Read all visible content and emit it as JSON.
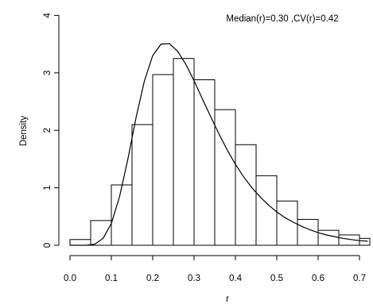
{
  "chart_data": {
    "type": "bar",
    "annotation": "Median(r)=0.30 ,CV(r)=0.42",
    "xlabel": "r",
    "ylabel": "Density",
    "xlim": [
      0.0,
      0.72
    ],
    "ylim": [
      0,
      4
    ],
    "xticks": [
      "0.0",
      "0.1",
      "0.2",
      "0.3",
      "0.4",
      "0.5",
      "0.6",
      "0.7"
    ],
    "yticks": [
      "0",
      "1",
      "2",
      "3",
      "4"
    ],
    "bins": [
      {
        "x0": 0.0,
        "x1": 0.05,
        "density": 0.1
      },
      {
        "x0": 0.05,
        "x1": 0.1,
        "density": 0.43
      },
      {
        "x0": 0.1,
        "x1": 0.15,
        "density": 1.05
      },
      {
        "x0": 0.15,
        "x1": 0.2,
        "density": 2.1
      },
      {
        "x0": 0.2,
        "x1": 0.25,
        "density": 2.97
      },
      {
        "x0": 0.25,
        "x1": 0.3,
        "density": 3.25
      },
      {
        "x0": 0.3,
        "x1": 0.35,
        "density": 2.88
      },
      {
        "x0": 0.35,
        "x1": 0.4,
        "density": 2.36
      },
      {
        "x0": 0.4,
        "x1": 0.45,
        "density": 1.75
      },
      {
        "x0": 0.45,
        "x1": 0.5,
        "density": 1.21
      },
      {
        "x0": 0.5,
        "x1": 0.55,
        "density": 0.77
      },
      {
        "x0": 0.55,
        "x1": 0.6,
        "density": 0.45
      },
      {
        "x0": 0.6,
        "x1": 0.65,
        "density": 0.26
      },
      {
        "x0": 0.65,
        "x1": 0.7,
        "density": 0.18
      },
      {
        "x0": 0.7,
        "x1": 0.75,
        "density": 0.12
      }
    ],
    "curve": {
      "x": [
        0.0,
        0.02,
        0.04,
        0.06,
        0.08,
        0.1,
        0.12,
        0.14,
        0.16,
        0.18,
        0.2,
        0.22,
        0.24,
        0.26,
        0.28,
        0.3,
        0.32,
        0.34,
        0.36,
        0.38,
        0.4,
        0.42,
        0.44,
        0.46,
        0.48,
        0.5,
        0.52,
        0.54,
        0.56,
        0.58,
        0.6,
        0.62,
        0.64,
        0.66,
        0.68,
        0.7,
        0.72
      ],
      "y": [
        0.0,
        0.0,
        0.0,
        0.02,
        0.12,
        0.38,
        0.85,
        1.5,
        2.23,
        2.86,
        3.3,
        3.5,
        3.51,
        3.38,
        3.15,
        2.86,
        2.55,
        2.24,
        1.94,
        1.66,
        1.41,
        1.19,
        1.0,
        0.84,
        0.7,
        0.58,
        0.48,
        0.4,
        0.33,
        0.27,
        0.22,
        0.18,
        0.15,
        0.12,
        0.1,
        0.08,
        0.07
      ]
    }
  }
}
